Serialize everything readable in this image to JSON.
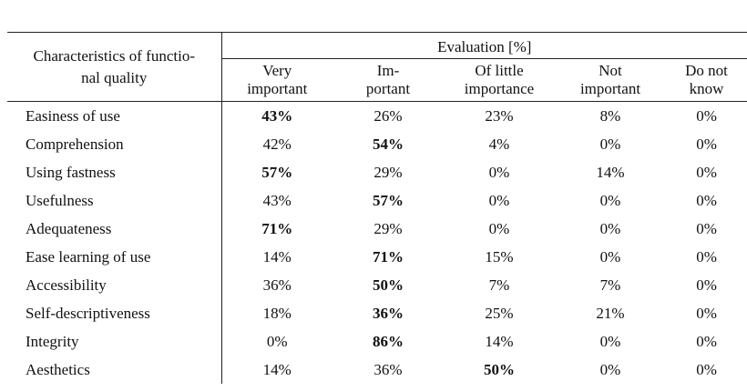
{
  "table": {
    "corner_header": [
      "Characteristics of functio-",
      "nal quality"
    ],
    "group_header": "Evaluation [%]",
    "columns": [
      [
        "Very",
        "important"
      ],
      [
        "Im-",
        "portant"
      ],
      [
        "Of little",
        "importance"
      ],
      [
        "Not",
        "important"
      ],
      [
        "Do not",
        "know"
      ]
    ],
    "rows": [
      {
        "label": "Easiness of use",
        "cells": [
          "43%",
          "26%",
          "23%",
          "8%",
          "0%"
        ],
        "bold": 0
      },
      {
        "label": "Comprehension",
        "cells": [
          "42%",
          "54%",
          "4%",
          "0%",
          "0%"
        ],
        "bold": 1
      },
      {
        "label": "Using fastness",
        "cells": [
          "57%",
          "29%",
          "0%",
          "14%",
          "0%"
        ],
        "bold": 0
      },
      {
        "label": "Usefulness",
        "cells": [
          "43%",
          "57%",
          "0%",
          "0%",
          "0%"
        ],
        "bold": 1
      },
      {
        "label": "Adequateness",
        "cells": [
          "71%",
          "29%",
          "0%",
          "0%",
          "0%"
        ],
        "bold": 0
      },
      {
        "label": "Ease learning of use",
        "cells": [
          "14%",
          "71%",
          "15%",
          "0%",
          "0%"
        ],
        "bold": 1
      },
      {
        "label": "Accessibility",
        "cells": [
          "36%",
          "50%",
          "7%",
          "7%",
          "0%"
        ],
        "bold": 1
      },
      {
        "label": "Self-descriptiveness",
        "cells": [
          "18%",
          "36%",
          "25%",
          "21%",
          "0%"
        ],
        "bold": 1
      },
      {
        "label": "Integrity",
        "cells": [
          "0%",
          "86%",
          "14%",
          "0%",
          "0%"
        ],
        "bold": 1
      },
      {
        "label": "Aesthetics",
        "cells": [
          "14%",
          "36%",
          "50%",
          "0%",
          "0%"
        ],
        "bold": 2
      }
    ]
  }
}
